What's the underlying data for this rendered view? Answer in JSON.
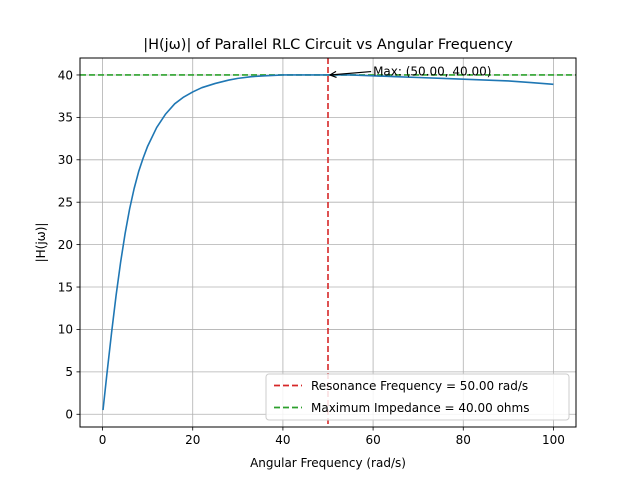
{
  "chart_data": {
    "type": "line",
    "title": "|H(jω)| of Parallel RLC Circuit vs Angular Frequency",
    "xlabel": "Angular Frequency (rad/s)",
    "ylabel": "|H(jω)|",
    "xlim": [
      -5,
      105
    ],
    "ylim": [
      -1.5,
      42
    ],
    "xticks": [
      0,
      20,
      40,
      60,
      80,
      100
    ],
    "yticks": [
      0,
      5,
      10,
      15,
      20,
      25,
      30,
      35,
      40
    ],
    "grid": true,
    "legend_position": "lower-right",
    "series": [
      {
        "name": "",
        "color": "#1f77b4",
        "x": [
          0.1,
          1,
          2,
          3,
          4,
          5,
          6,
          7,
          8,
          9,
          10,
          12,
          14,
          16,
          18,
          20,
          22,
          25,
          28,
          30,
          33,
          36,
          40,
          43,
          46,
          50,
          55,
          60,
          65,
          70,
          75,
          80,
          85,
          90,
          95,
          100
        ],
        "y": [
          0.5,
          4.9,
          9.6,
          14.0,
          17.9,
          21.3,
          24.2,
          26.6,
          28.6,
          30.2,
          31.6,
          33.8,
          35.4,
          36.6,
          37.4,
          38.0,
          38.5,
          39.0,
          39.4,
          39.6,
          39.8,
          39.9,
          40.0,
          40.0,
          40.0,
          40.0,
          40.0,
          39.9,
          39.8,
          39.7,
          39.6,
          39.5,
          39.4,
          39.3,
          39.1,
          38.9
        ]
      }
    ],
    "reference_lines": [
      {
        "orientation": "vertical",
        "value": 50,
        "color": "#d62728",
        "style": "dashed",
        "label": "Resonance Frequency = 50.00 rad/s"
      },
      {
        "orientation": "horizontal",
        "value": 40,
        "color": "#2ca02c",
        "style": "dashed",
        "label": "Maximum Impedance = 40.00 ohms"
      }
    ],
    "annotations": [
      {
        "text": "Max: (50.00, 40.00)",
        "point": [
          50,
          40
        ],
        "text_at": [
          60,
          40.4
        ]
      }
    ]
  }
}
